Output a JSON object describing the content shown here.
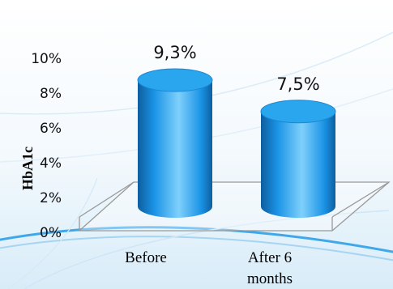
{
  "chart_data": {
    "type": "bar",
    "categories": [
      "Before",
      [
        "After 6",
        "months"
      ]
    ],
    "values": [
      9.3,
      7.5
    ],
    "data_labels": [
      "9,3%",
      "7,5%"
    ],
    "ylabel": "HbA1c",
    "yticks": [
      "0%",
      "2%",
      "4%",
      "6%",
      "8%",
      "10%"
    ],
    "ylim": [
      0,
      10
    ],
    "grid": false,
    "legend": "none",
    "bar_style": "3d-cylinder",
    "colors": {
      "bar": "#1a93e6",
      "bar_light": "#7fd0fb",
      "bar_dark": "#0e5e9e",
      "bar_top": "#2aa6ee",
      "floor": "#999999"
    }
  }
}
